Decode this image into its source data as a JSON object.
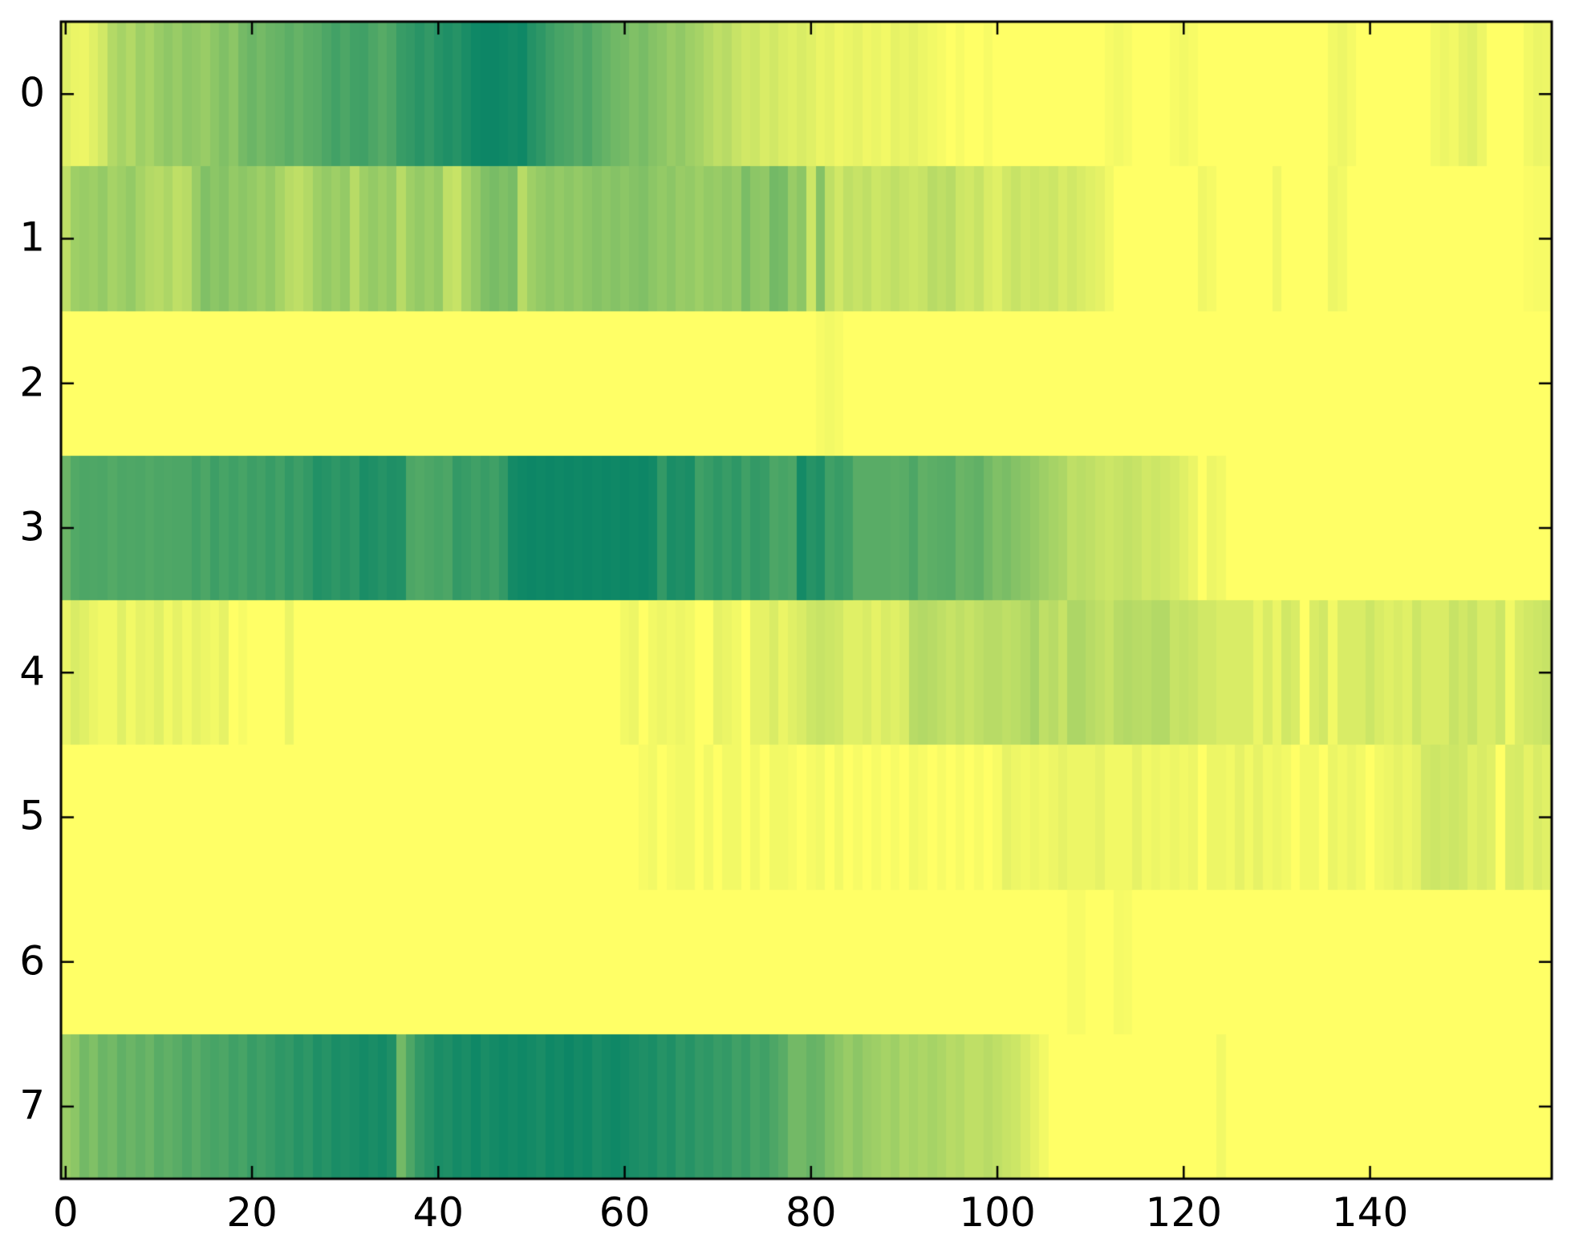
{
  "figure": {
    "background": "#ffffff",
    "spine_color": "#000000",
    "tick_color": "#000000",
    "label_color": "#000000"
  },
  "chart_data": {
    "type": "heatmap",
    "title": "",
    "xlabel": "",
    "ylabel": "",
    "x_ticks": [
      0,
      20,
      40,
      60,
      80,
      100,
      120,
      140
    ],
    "x_tick_labels": [
      "0",
      "20",
      "40",
      "60",
      "80",
      "100",
      "120",
      "140"
    ],
    "y_ticks": [
      0,
      1,
      2,
      3,
      4,
      5,
      6,
      7
    ],
    "y_tick_labels": [
      "0",
      "1",
      "2",
      "3",
      "4",
      "5",
      "6",
      "7"
    ],
    "n_rows": 8,
    "n_cols": 160,
    "x_extent": [
      -0.5,
      159.5
    ],
    "y_extent": [
      -0.5,
      7.5
    ],
    "grid": false,
    "legend": "none",
    "colormap": {
      "name": "summer",
      "low_value_color": "#008066",
      "high_value_color": "#ffff66",
      "note": "cell color = rgb(255*v, 128+127*v, 102); v=1 bright yellow, v=0 dark teal"
    },
    "rows": [
      [
        0.88,
        0.92,
        0.93,
        0.88,
        0.82,
        0.7,
        0.65,
        0.7,
        0.62,
        0.66,
        0.6,
        0.56,
        0.6,
        0.55,
        0.57,
        0.6,
        0.55,
        0.5,
        0.55,
        0.46,
        0.42,
        0.46,
        0.42,
        0.4,
        0.36,
        0.4,
        0.36,
        0.35,
        0.3,
        0.26,
        0.3,
        0.26,
        0.25,
        0.3,
        0.34,
        0.3,
        0.22,
        0.2,
        0.16,
        0.2,
        0.15,
        0.12,
        0.15,
        0.1,
        0.06,
        0.05,
        0.05,
        0.06,
        0.08,
        0.06,
        0.14,
        0.18,
        0.24,
        0.28,
        0.3,
        0.34,
        0.3,
        0.36,
        0.4,
        0.44,
        0.46,
        0.5,
        0.47,
        0.52,
        0.55,
        0.6,
        0.57,
        0.62,
        0.65,
        0.7,
        0.75,
        0.72,
        0.78,
        0.82,
        0.8,
        0.85,
        0.82,
        0.86,
        0.88,
        0.85,
        0.88,
        0.92,
        0.9,
        0.94,
        0.92,
        0.9,
        0.94,
        0.92,
        0.95,
        0.9,
        0.92,
        0.9,
        0.93,
        0.95,
        0.97,
        1,
        0.97,
        1,
        1,
        0.97,
        1,
        1,
        1,
        1,
        1,
        1,
        1,
        1,
        1,
        1,
        1,
        1,
        0.97,
        0.95,
        0.97,
        1,
        1,
        1,
        1,
        0.97,
        0.95,
        0.97,
        1,
        1,
        1,
        1,
        1,
        1,
        1,
        1,
        1,
        1,
        1,
        1,
        1,
        1,
        0.95,
        0.93,
        0.96,
        1,
        1,
        1,
        1,
        1,
        1,
        1,
        1,
        0.95,
        0.93,
        0.95,
        0.9,
        0.88,
        0.93,
        1,
        1,
        1,
        1,
        0.95,
        0.92,
        0.93
      ],
      [
        0.75,
        0.62,
        0.6,
        0.62,
        0.58,
        0.65,
        0.62,
        0.58,
        0.65,
        0.7,
        0.72,
        0.68,
        0.75,
        0.72,
        0.6,
        0.5,
        0.55,
        0.52,
        0.58,
        0.55,
        0.58,
        0.62,
        0.58,
        0.65,
        0.72,
        0.75,
        0.7,
        0.62,
        0.58,
        0.62,
        0.58,
        0.72,
        0.62,
        0.58,
        0.62,
        0.58,
        0.72,
        0.62,
        0.58,
        0.62,
        0.58,
        0.75,
        0.78,
        0.65,
        0.58,
        0.5,
        0.47,
        0.5,
        0.47,
        0.72,
        0.62,
        0.58,
        0.55,
        0.58,
        0.55,
        0.58,
        0.55,
        0.52,
        0.55,
        0.52,
        0.55,
        0.52,
        0.5,
        0.55,
        0.58,
        0.55,
        0.6,
        0.58,
        0.62,
        0.58,
        0.6,
        0.57,
        0.6,
        0.48,
        0.55,
        0.57,
        0.45,
        0.47,
        0.6,
        0.55,
        0.8,
        0.52,
        0.75,
        0.82,
        0.75,
        0.78,
        0.75,
        0.8,
        0.78,
        0.75,
        0.78,
        0.8,
        0.78,
        0.72,
        0.75,
        0.72,
        0.8,
        0.82,
        0.78,
        0.85,
        0.88,
        0.82,
        0.78,
        0.82,
        0.8,
        0.82,
        0.8,
        0.85,
        0.82,
        0.85,
        0.88,
        0.9,
        0.95,
        1,
        1,
        1,
        1,
        1,
        1,
        1,
        1,
        1,
        0.94,
        0.96,
        1,
        1,
        1,
        1,
        1,
        1,
        0.94,
        1,
        1,
        1,
        1,
        1,
        0.93,
        0.95,
        1,
        1,
        1,
        1,
        1,
        1,
        1,
        1,
        1,
        1,
        1,
        1,
        1,
        1,
        1,
        1,
        1,
        1,
        1,
        0.98,
        0.97,
        0.97
      ],
      [
        1,
        1,
        1,
        1,
        1,
        1,
        1,
        1,
        1,
        1,
        1,
        1,
        1,
        1,
        1,
        1,
        1,
        1,
        1,
        1,
        1,
        1,
        1,
        1,
        1,
        1,
        1,
        1,
        1,
        1,
        1,
        1,
        1,
        1,
        1,
        1,
        1,
        1,
        1,
        1,
        1,
        1,
        1,
        1,
        1,
        1,
        1,
        1,
        1,
        1,
        1,
        1,
        1,
        1,
        1,
        1,
        1,
        1,
        1,
        1,
        1,
        1,
        1,
        1,
        1,
        1,
        1,
        1,
        1,
        1,
        1,
        1,
        1,
        1,
        1,
        1,
        1,
        1,
        1,
        1,
        1,
        0.97,
        0.95,
        0.97,
        1,
        1,
        1,
        1,
        1,
        1,
        1,
        1,
        1,
        1,
        1,
        1,
        1,
        1,
        1,
        1,
        1,
        1,
        1,
        1,
        1,
        1,
        1,
        1,
        1,
        1,
        1,
        1,
        1,
        1,
        1,
        1,
        1,
        1,
        1,
        1,
        1,
        1,
        1,
        1,
        1,
        1,
        1,
        1,
        1,
        1,
        1,
        1,
        1,
        1,
        1,
        1,
        1,
        1,
        1,
        1,
        1,
        1,
        1,
        1,
        1,
        1,
        1,
        1,
        1,
        1,
        1,
        1,
        1,
        1,
        1,
        1,
        1,
        1,
        1,
        1
      ],
      [
        0.42,
        0.32,
        0.3,
        0.31,
        0.3,
        0.33,
        0.3,
        0.31,
        0.3,
        0.32,
        0.3,
        0.31,
        0.3,
        0.3,
        0.26,
        0.3,
        0.24,
        0.28,
        0.25,
        0.28,
        0.24,
        0.26,
        0.22,
        0.26,
        0.2,
        0.24,
        0.2,
        0.13,
        0.15,
        0.18,
        0.15,
        0.18,
        0.1,
        0.12,
        0.15,
        0.12,
        0.13,
        0.3,
        0.32,
        0.3,
        0.28,
        0.3,
        0.2,
        0.22,
        0.25,
        0.22,
        0.25,
        0.2,
        0.08,
        0.06,
        0.05,
        0.06,
        0.05,
        0.06,
        0.05,
        0.06,
        0.05,
        0.06,
        0.05,
        0.06,
        0.05,
        0.06,
        0.05,
        0.07,
        0.2,
        0.1,
        0.12,
        0.1,
        0.25,
        0.22,
        0.18,
        0.22,
        0.18,
        0.25,
        0.2,
        0.22,
        0.3,
        0.28,
        0.3,
        0.08,
        0.15,
        0.12,
        0.25,
        0.22,
        0.25,
        0.35,
        0.35,
        0.35,
        0.35,
        0.36,
        0.35,
        0.3,
        0.38,
        0.36,
        0.35,
        0.34,
        0.42,
        0.4,
        0.38,
        0.45,
        0.5,
        0.48,
        0.52,
        0.55,
        0.58,
        0.62,
        0.65,
        0.68,
        0.75,
        0.73,
        0.75,
        0.78,
        0.8,
        0.78,
        0.76,
        0.78,
        0.82,
        0.8,
        0.82,
        0.84,
        0.88,
        0.92,
        1,
        0.93,
        0.95,
        1,
        1,
        1,
        1,
        1,
        1,
        1,
        1,
        1,
        1,
        1,
        1,
        1,
        1,
        1,
        1,
        1,
        1,
        1,
        1,
        1,
        1,
        1,
        1,
        1,
        1,
        1,
        1,
        1,
        1,
        1,
        1,
        1,
        1,
        1
      ],
      [
        0.92,
        0.85,
        0.88,
        0.92,
        0.95,
        0.95,
        0.88,
        0.95,
        0.9,
        0.92,
        0.88,
        0.95,
        0.9,
        0.95,
        0.9,
        0.93,
        0.95,
        0.9,
        1,
        0.97,
        1,
        1,
        1,
        1,
        0.92,
        1,
        1,
        1,
        1,
        1,
        1,
        1,
        1,
        1,
        1,
        1,
        1,
        1,
        1,
        1,
        1,
        1,
        1,
        1,
        1,
        1,
        1,
        1,
        1,
        1,
        1,
        1,
        1,
        1,
        1,
        1,
        1,
        1,
        1,
        1,
        0.95,
        0.93,
        1,
        0.95,
        0.93,
        0.95,
        0.93,
        0.95,
        1,
        1,
        0.9,
        0.92,
        0.95,
        1,
        0.9,
        0.9,
        0.85,
        0.92,
        0.88,
        0.85,
        0.8,
        0.78,
        0.8,
        0.82,
        0.88,
        0.88,
        0.85,
        0.9,
        0.85,
        0.88,
        0.85,
        0.72,
        0.7,
        0.72,
        0.75,
        0.78,
        0.75,
        0.78,
        0.75,
        0.72,
        0.72,
        0.75,
        0.73,
        0.7,
        0.65,
        0.75,
        0.72,
        0.78,
        0.68,
        0.68,
        0.72,
        0.75,
        0.78,
        0.72,
        0.7,
        0.72,
        0.73,
        0.7,
        0.7,
        0.78,
        0.76,
        0.78,
        0.82,
        0.82,
        0.85,
        0.85,
        0.85,
        0.85,
        0.92,
        0.85,
        0.92,
        0.82,
        0.85,
        1,
        0.85,
        0.82,
        0.95,
        0.85,
        0.85,
        0.85,
        0.8,
        0.85,
        0.88,
        0.85,
        0.88,
        0.8,
        0.85,
        0.85,
        0.85,
        0.78,
        0.82,
        0.78,
        0.85,
        0.85,
        0.8,
        0.95,
        0.85,
        0.82,
        0.8,
        0.78
      ],
      [
        1,
        1,
        1,
        1,
        1,
        1,
        1,
        1,
        1,
        1,
        1,
        1,
        1,
        1,
        1,
        1,
        1,
        1,
        1,
        1,
        1,
        1,
        1,
        1,
        1,
        1,
        1,
        1,
        1,
        1,
        1,
        1,
        1,
        1,
        1,
        1,
        1,
        1,
        1,
        1,
        1,
        1,
        1,
        1,
        1,
        1,
        1,
        1,
        1,
        1,
        1,
        1,
        1,
        1,
        1,
        1,
        1,
        1,
        1,
        1,
        1,
        1,
        0.97,
        0.95,
        1,
        0.97,
        0.95,
        0.95,
        1,
        0.95,
        1,
        0.95,
        0.95,
        1,
        0.95,
        1,
        0.95,
        0.95,
        0.97,
        1,
        0.97,
        0.95,
        1,
        0.95,
        1,
        0.97,
        1,
        0.97,
        1,
        0.97,
        1,
        0.95,
        0.97,
        1,
        0.97,
        1,
        0.97,
        1,
        0.97,
        1,
        0.97,
        0.9,
        0.93,
        0.95,
        0.93,
        0.95,
        0.93,
        0.9,
        0.93,
        0.93,
        0.93,
        0.9,
        0.95,
        0.95,
        0.95,
        0.9,
        0.95,
        0.93,
        0.95,
        0.93,
        0.95,
        0.93,
        1,
        0.93,
        0.93,
        0.95,
        0.9,
        0.95,
        0.9,
        0.95,
        0.93,
        0.95,
        1,
        0.95,
        0.95,
        1,
        0.92,
        0.95,
        0.92,
        0.95,
        1,
        0.95,
        0.93,
        0.9,
        0.93,
        0.9,
        0.82,
        0.8,
        0.82,
        0.8,
        0.82,
        0.88,
        0.85,
        0.88,
        1,
        0.85,
        0.84,
        0.9,
        0.85,
        0.88
      ],
      [
        1,
        1,
        1,
        1,
        1,
        1,
        1,
        1,
        1,
        1,
        1,
        1,
        1,
        1,
        1,
        1,
        1,
        1,
        1,
        1,
        1,
        1,
        1,
        1,
        1,
        1,
        1,
        1,
        1,
        1,
        1,
        1,
        1,
        1,
        1,
        1,
        1,
        1,
        1,
        1,
        1,
        1,
        1,
        1,
        1,
        1,
        1,
        1,
        1,
        1,
        1,
        1,
        1,
        1,
        1,
        1,
        1,
        1,
        1,
        1,
        1,
        1,
        1,
        1,
        1,
        1,
        1,
        1,
        1,
        1,
        1,
        1,
        1,
        1,
        1,
        1,
        1,
        1,
        1,
        1,
        1,
        1,
        1,
        1,
        1,
        1,
        1,
        1,
        1,
        1,
        1,
        1,
        1,
        1,
        1,
        1,
        1,
        1,
        1,
        1,
        1,
        1,
        1,
        1,
        1,
        1,
        1,
        1,
        0.97,
        0.97,
        1,
        1,
        1,
        0.96,
        0.97,
        1,
        1,
        1,
        1,
        1,
        1,
        1,
        1,
        1,
        1,
        1,
        1,
        1,
        1,
        1,
        1,
        1,
        1,
        1,
        1,
        1,
        1,
        1,
        1,
        1,
        1,
        1,
        1,
        1,
        1,
        1,
        1,
        1,
        1,
        1,
        1,
        1,
        1,
        1,
        1,
        1,
        1,
        1,
        1,
        1
      ],
      [
        0.6,
        0.55,
        0.45,
        0.5,
        0.42,
        0.45,
        0.38,
        0.42,
        0.38,
        0.42,
        0.35,
        0.38,
        0.35,
        0.3,
        0.35,
        0.3,
        0.28,
        0.3,
        0.25,
        0.28,
        0.22,
        0.25,
        0.22,
        0.18,
        0.2,
        0.15,
        0.18,
        0.12,
        0.15,
        0.1,
        0.12,
        0.1,
        0.08,
        0.1,
        0.08,
        0.12,
        0.45,
        0.3,
        0.2,
        0.15,
        0.1,
        0.12,
        0.08,
        0.1,
        0.06,
        0.1,
        0.08,
        0.06,
        0.08,
        0.06,
        0.08,
        0.1,
        0.06,
        0.08,
        0.05,
        0.08,
        0.06,
        0.1,
        0.08,
        0.06,
        0.08,
        0.1,
        0.12,
        0.1,
        0.15,
        0.12,
        0.18,
        0.15,
        0.2,
        0.18,
        0.22,
        0.2,
        0.25,
        0.22,
        0.28,
        0.25,
        0.3,
        0.35,
        0.45,
        0.45,
        0.4,
        0.42,
        0.5,
        0.55,
        0.6,
        0.55,
        0.6,
        0.62,
        0.65,
        0.62,
        0.68,
        0.65,
        0.68,
        0.65,
        0.68,
        0.72,
        0.7,
        0.75,
        0.75,
        0.72,
        0.75,
        0.78,
        0.8,
        0.85,
        0.9,
        0.95,
        1,
        1,
        1,
        1,
        1,
        1,
        1,
        1,
        1,
        1,
        1,
        1,
        1,
        1,
        1,
        1,
        1,
        1,
        0.95,
        1,
        1,
        1,
        1,
        1,
        1,
        1,
        1,
        1,
        1,
        1,
        1,
        1,
        1,
        1,
        1,
        1,
        1,
        1,
        1,
        1,
        1,
        1,
        1,
        1,
        1,
        1,
        1,
        1,
        1,
        1,
        1,
        1,
        1,
        1
      ]
    ]
  }
}
